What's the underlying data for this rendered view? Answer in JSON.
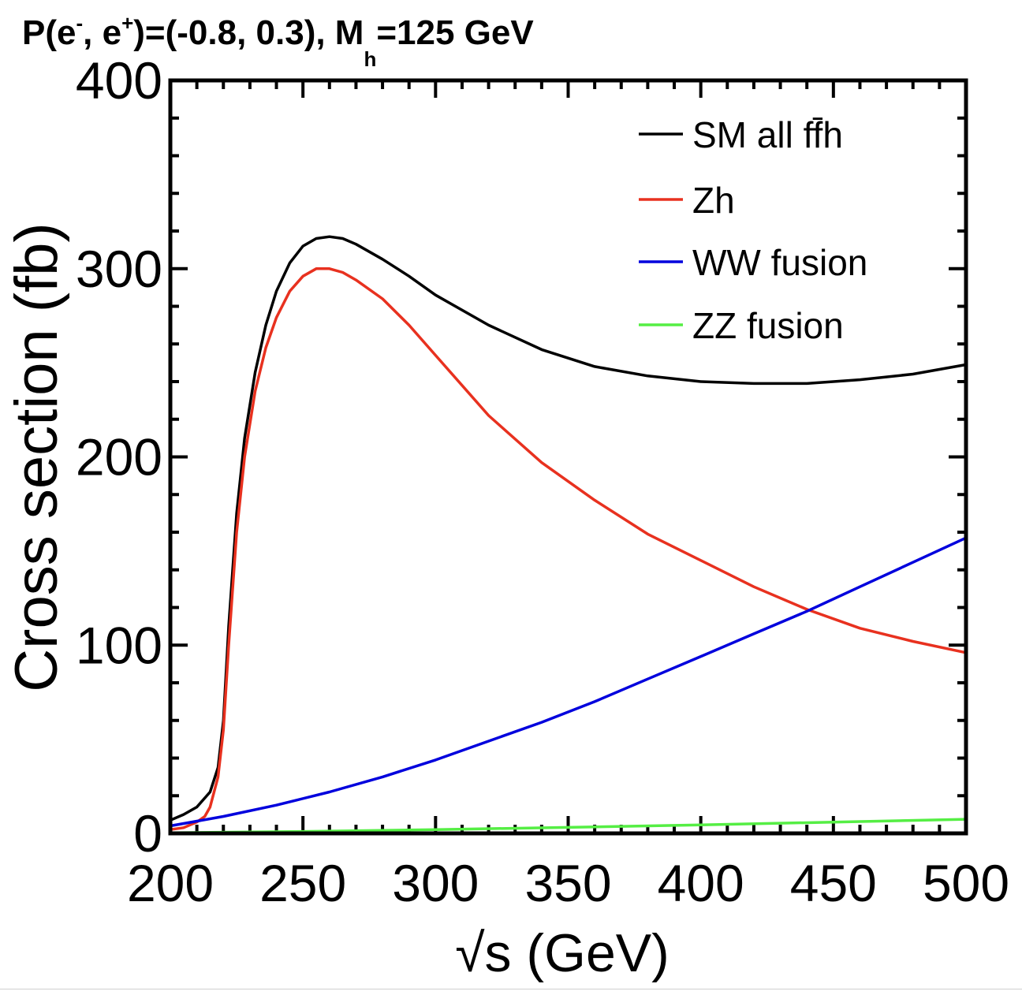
{
  "chart_data": {
    "type": "line",
    "title": {
      "parts": [
        "P(e",
        "-",
        ", e",
        "+",
        ")=(-0.8, 0.3), M",
        "h",
        "=125 GeV"
      ]
    },
    "xlabel": "√s (GeV)",
    "ylabel": "Cross section (fb)",
    "xlim": [
      200,
      500
    ],
    "ylim": [
      0,
      400
    ],
    "x_ticks": [
      "200",
      "250",
      "300",
      "350",
      "400",
      "450",
      "500"
    ],
    "y_ticks": [
      "0",
      "100",
      "200",
      "300",
      "400"
    ],
    "grid": false,
    "legend_position": "top-right",
    "series": [
      {
        "name": "SM all ff̄h",
        "color": "#000000",
        "points": [
          [
            200,
            7
          ],
          [
            205,
            10
          ],
          [
            210,
            14
          ],
          [
            215,
            22
          ],
          [
            218,
            35
          ],
          [
            220,
            60
          ],
          [
            222,
            110
          ],
          [
            225,
            170
          ],
          [
            228,
            210
          ],
          [
            232,
            245
          ],
          [
            236,
            270
          ],
          [
            240,
            288
          ],
          [
            245,
            303
          ],
          [
            250,
            312
          ],
          [
            255,
            316
          ],
          [
            260,
            317
          ],
          [
            265,
            316
          ],
          [
            270,
            313
          ],
          [
            280,
            305
          ],
          [
            290,
            296
          ],
          [
            300,
            286
          ],
          [
            320,
            270
          ],
          [
            340,
            257
          ],
          [
            360,
            248
          ],
          [
            380,
            243
          ],
          [
            400,
            240
          ],
          [
            420,
            239
          ],
          [
            440,
            239
          ],
          [
            460,
            241
          ],
          [
            480,
            244
          ],
          [
            500,
            249
          ]
        ]
      },
      {
        "name": "Zh",
        "color": "#e8311f",
        "points": [
          [
            200,
            2
          ],
          [
            205,
            3
          ],
          [
            210,
            6
          ],
          [
            213,
            9
          ],
          [
            215,
            14
          ],
          [
            218,
            30
          ],
          [
            220,
            55
          ],
          [
            222,
            100
          ],
          [
            225,
            160
          ],
          [
            228,
            200
          ],
          [
            232,
            235
          ],
          [
            236,
            258
          ],
          [
            240,
            274
          ],
          [
            245,
            288
          ],
          [
            250,
            296
          ],
          [
            255,
            300
          ],
          [
            260,
            300
          ],
          [
            265,
            298
          ],
          [
            270,
            294
          ],
          [
            280,
            284
          ],
          [
            290,
            270
          ],
          [
            300,
            254
          ],
          [
            320,
            222
          ],
          [
            340,
            197
          ],
          [
            360,
            177
          ],
          [
            380,
            159
          ],
          [
            400,
            145
          ],
          [
            420,
            131
          ],
          [
            440,
            119
          ],
          [
            460,
            109
          ],
          [
            480,
            102
          ],
          [
            500,
            96
          ]
        ]
      },
      {
        "name": "WW fusion",
        "color": "#0000dd",
        "points": [
          [
            200,
            4
          ],
          [
            220,
            9
          ],
          [
            240,
            15
          ],
          [
            260,
            22
          ],
          [
            280,
            30
          ],
          [
            300,
            39
          ],
          [
            320,
            49
          ],
          [
            340,
            59
          ],
          [
            360,
            70
          ],
          [
            380,
            82
          ],
          [
            400,
            94
          ],
          [
            420,
            106
          ],
          [
            440,
            118
          ],
          [
            460,
            131
          ],
          [
            480,
            144
          ],
          [
            500,
            157
          ]
        ]
      },
      {
        "name": "ZZ fusion",
        "color": "#55ee44",
        "points": [
          [
            200,
            0.3
          ],
          [
            250,
            1
          ],
          [
            300,
            2
          ],
          [
            350,
            3.2
          ],
          [
            400,
            4.5
          ],
          [
            450,
            6
          ],
          [
            500,
            7.5
          ]
        ]
      }
    ]
  }
}
